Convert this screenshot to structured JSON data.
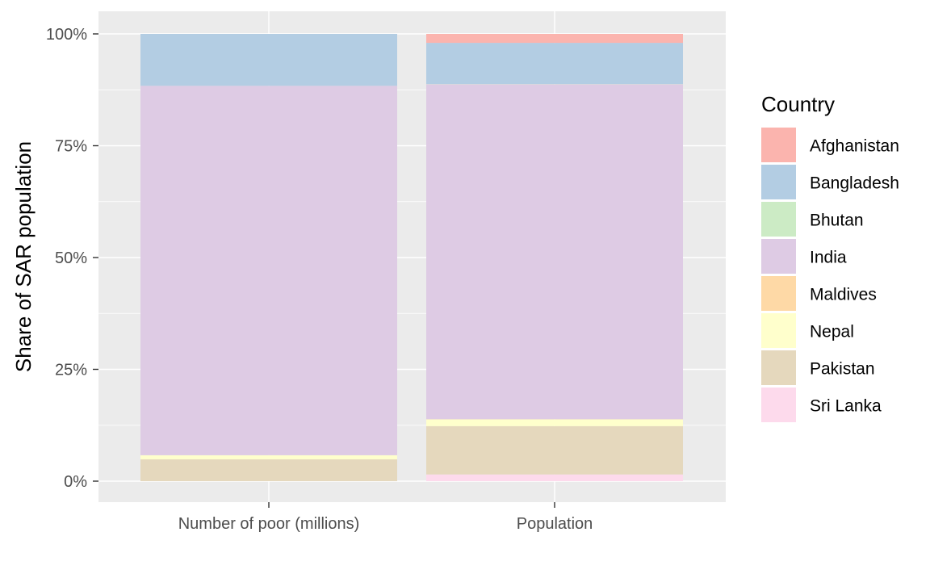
{
  "chart_data": {
    "type": "bar",
    "stacked": true,
    "percent": true,
    "categories": [
      "Number of poor (millions)",
      "Population"
    ],
    "ylabel": "Share of SAR population",
    "xlabel": "",
    "ylim": [
      0,
      100
    ],
    "yticks": [
      "0%",
      "25%",
      "50%",
      "75%",
      "100%"
    ],
    "ytick_values": [
      0,
      25,
      50,
      75,
      100
    ],
    "legend_title": "Country",
    "legend_position": "right",
    "grid": true,
    "series": [
      {
        "name": "Afghanistan",
        "color": "#FBB4AE",
        "values": [
          0.0,
          2.0
        ]
      },
      {
        "name": "Bangladesh",
        "color": "#B3CDE3",
        "values": [
          11.6,
          9.2
        ]
      },
      {
        "name": "Bhutan",
        "color": "#CCEBC5",
        "values": [
          0.0,
          0.05
        ]
      },
      {
        "name": "India",
        "color": "#DECBE4",
        "values": [
          82.6,
          74.9
        ]
      },
      {
        "name": "Maldives",
        "color": "#FED9A6",
        "values": [
          0.0,
          0.05
        ]
      },
      {
        "name": "Nepal",
        "color": "#FFFFCC",
        "values": [
          0.9,
          1.5
        ]
      },
      {
        "name": "Pakistan",
        "color": "#E5D8BD",
        "values": [
          4.9,
          10.8
        ]
      },
      {
        "name": "Sri Lanka",
        "color": "#FDDAEC",
        "values": [
          0.0,
          1.5
        ]
      }
    ]
  }
}
